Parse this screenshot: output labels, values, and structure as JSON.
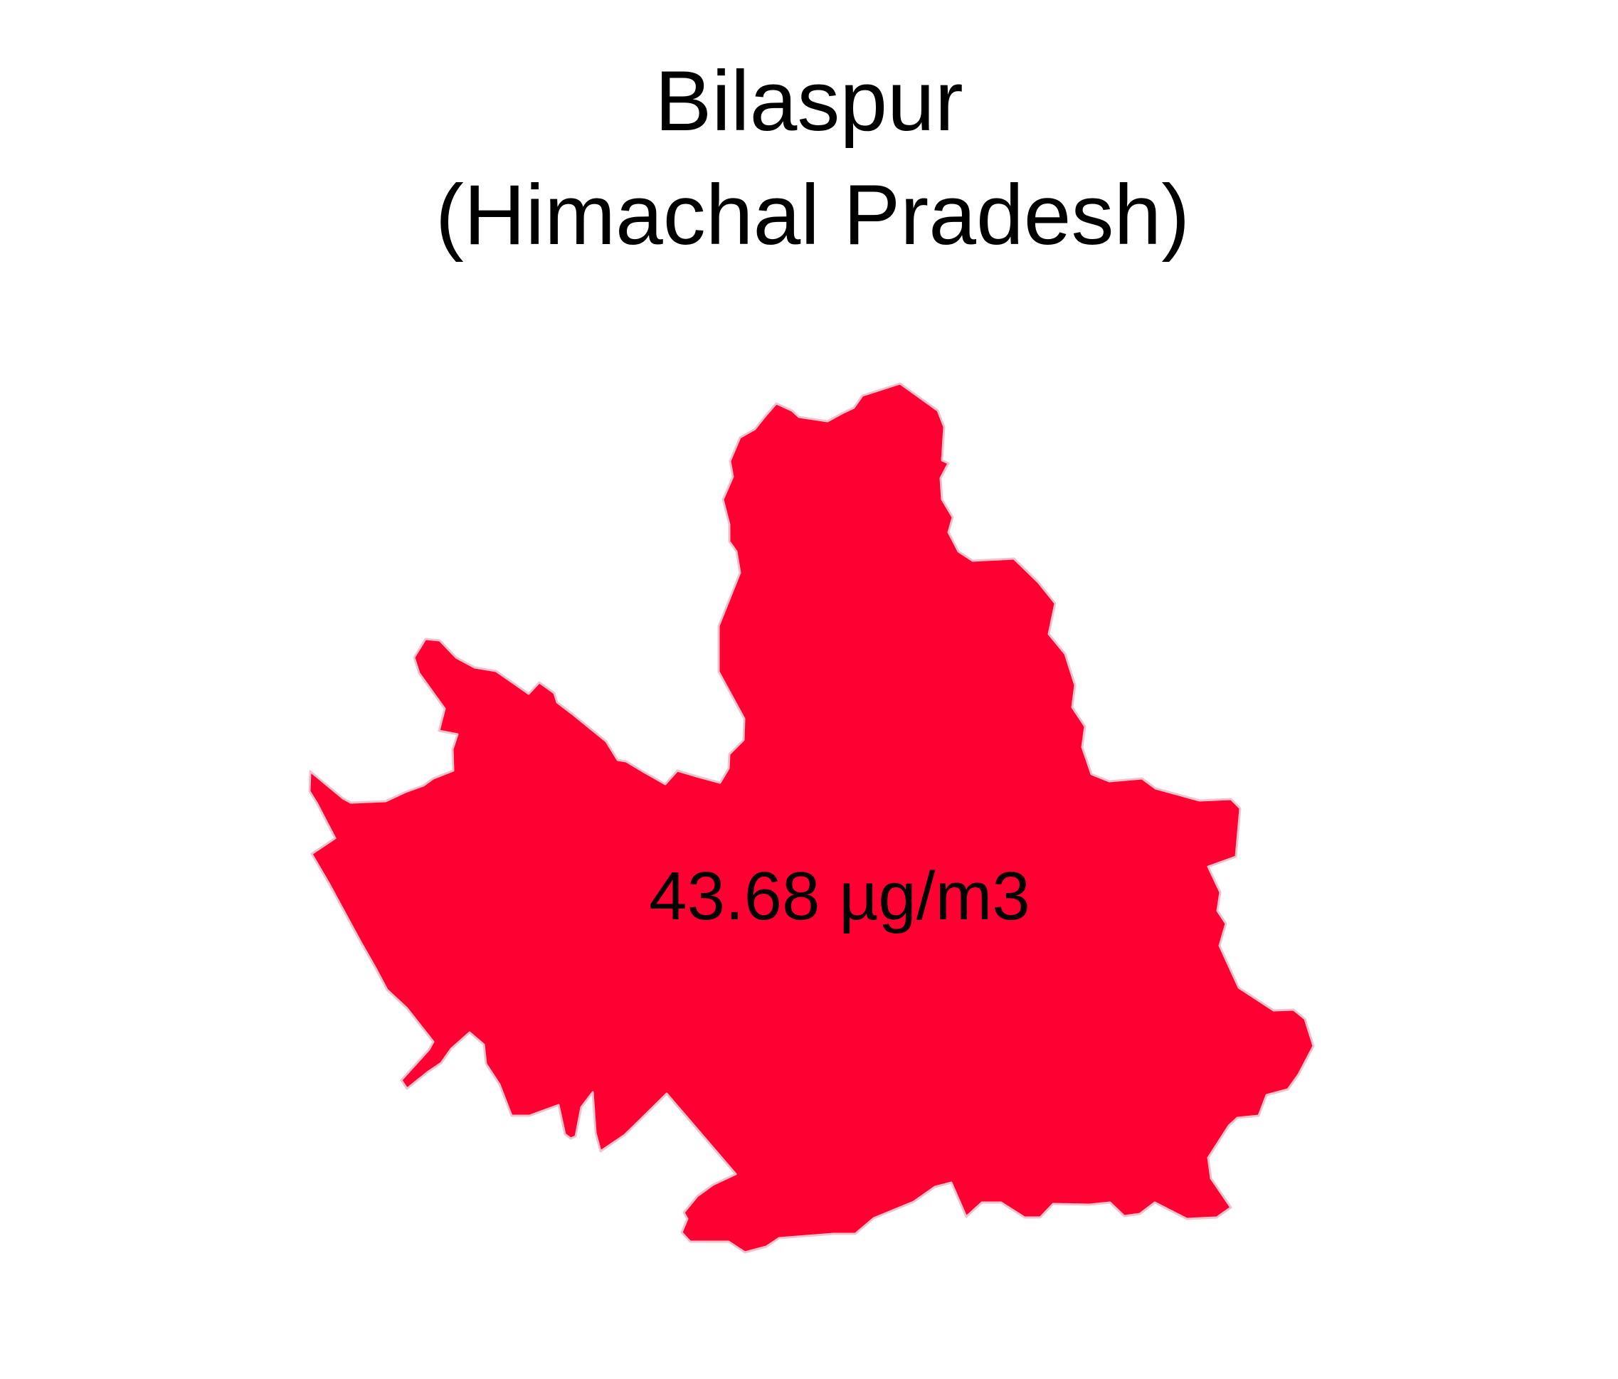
{
  "map": {
    "title": "Bilaspur",
    "subtitle": "(Himachal Pradesh)",
    "district": "Bilaspur",
    "state": "Himachal Pradesh",
    "value": 43.68,
    "value_label": "43.68 µg/m3",
    "unit": "µg/m3",
    "fill_color": "#ff0033",
    "border_color": "#f3c2cc",
    "background_color": "#ffffff"
  }
}
